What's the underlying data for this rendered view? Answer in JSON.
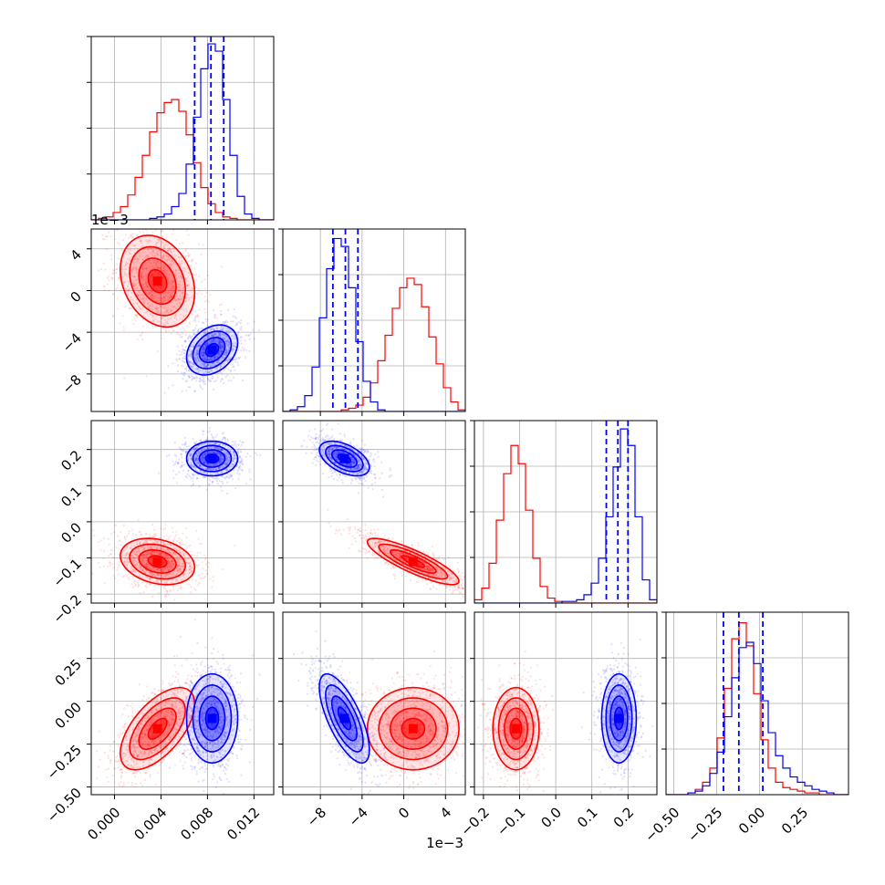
{
  "chart_data": {
    "type": "corner",
    "parameters": 4,
    "colors": {
      "red": "#ff0000",
      "blue": "#0000ff",
      "grid": "#b0b0b0",
      "frame": "#000000"
    },
    "axes": {
      "p0": {
        "range": [
          -0.002,
          0.0137
        ],
        "ticks": [
          0.0,
          0.004,
          0.008,
          0.012
        ],
        "tick_labels": [
          "0.000",
          "0.004",
          "0.008",
          "0.012"
        ]
      },
      "p1": {
        "range": [
          -0.0116,
          0.0059
        ],
        "ticks": [
          -0.008,
          -0.004,
          0.0,
          0.004
        ],
        "tick_labels": [
          "−8",
          "−4",
          "0",
          "4"
        ],
        "offset_label": "1e−3"
      },
      "p2": {
        "range": [
          -0.225,
          0.28
        ],
        "ticks": [
          -0.2,
          -0.1,
          0.0,
          0.1,
          0.2
        ],
        "tick_labels": [
          "−0.2",
          "−0.1",
          "0.0",
          "0.1",
          "0.2"
        ]
      },
      "p3": {
        "range": [
          -0.545,
          0.52
        ],
        "ticks": [
          -0.5,
          -0.25,
          0.0,
          0.25
        ],
        "tick_labels": [
          "−0.50",
          "−0.25",
          "0.00",
          "0.25"
        ]
      }
    },
    "y_tick_labels": {
      "p1": [
        "4",
        "0",
        "−4",
        "−8"
      ],
      "p2": [
        "0.2",
        "0.1",
        "0.0",
        "−0.1",
        "−0.2"
      ],
      "p3": [
        "0.25",
        "0.00",
        "−0.25",
        "−0.50"
      ]
    },
    "offset_labels": {
      "p1_left": "1e−3",
      "p1_bottom": "1e−3"
    },
    "series": [
      {
        "name": "",
        "color": "#ff0000",
        "mean": [
          0.0037,
          0.0009,
          -0.11,
          -0.16
        ],
        "std": [
          0.0016,
          0.0022,
          0.032,
          0.12
        ],
        "corr": {
          "0-1": -0.25,
          "0-2": -0.25,
          "0-3": 0.6,
          "1-2": -0.85,
          "1-3": 0.0,
          "2-3": 0.0
        }
      },
      {
        "name": "",
        "color": "#0000ff",
        "mean": [
          0.0084,
          -0.0057,
          0.175,
          -0.1
        ],
        "std": [
          0.0011,
          0.0012,
          0.024,
          0.13
        ],
        "corr": {
          "0-1": 0.3,
          "0-2": 0.0,
          "0-3": 0.0,
          "1-2": -0.5,
          "1-3": -0.7,
          "2-3": 0.0
        }
      }
    ],
    "quantile_lines": {
      "p0": [
        0.0069,
        0.0083,
        0.0094
      ],
      "p1": [
        -0.0068,
        -0.0056,
        -0.0044
      ],
      "p2": [
        0.14,
        0.172,
        0.2
      ],
      "p3": [
        -0.21,
        -0.12,
        0.02
      ]
    },
    "histograms": {
      "p0": {
        "bins": [
          -0.002,
          0.0137,
          25
        ],
        "red": [
          0,
          1,
          2,
          5,
          9,
          17,
          29,
          44,
          60,
          73,
          80,
          82,
          74,
          58,
          39,
          22,
          11,
          5,
          2,
          1,
          0,
          0,
          0,
          0,
          0
        ],
        "blue": [
          0,
          0,
          0,
          0,
          0,
          0,
          0,
          0,
          1,
          2,
          4,
          9,
          18,
          38,
          70,
          103,
          120,
          115,
          82,
          44,
          16,
          4,
          1,
          0,
          0
        ],
        "ymax": 125
      },
      "p1": {
        "bins": [
          -0.0116,
          0.0059,
          25
        ],
        "red": [
          0,
          0,
          0,
          0,
          0,
          0,
          0,
          0,
          1,
          2,
          4,
          9,
          18,
          32,
          48,
          65,
          78,
          84,
          80,
          66,
          47,
          30,
          15,
          6,
          1
        ],
        "blue": [
          0,
          1,
          3,
          10,
          28,
          59,
          90,
          109,
          104,
          78,
          44,
          19,
          6,
          1,
          0,
          0,
          0,
          0,
          0,
          0,
          0,
          0,
          0,
          0,
          0
        ],
        "ymax": 115
      },
      "p2": {
        "bins": [
          -0.225,
          0.28,
          25
        ],
        "red": [
          2,
          9,
          24,
          50,
          78,
          95,
          84,
          56,
          27,
          10,
          3,
          1,
          0,
          0,
          0,
          0,
          0,
          0,
          0,
          0,
          0,
          0,
          0,
          0,
          0
        ],
        "blue": [
          0,
          0,
          0,
          0,
          0,
          0,
          0,
          0,
          0,
          0,
          0,
          0,
          1,
          1,
          2,
          5,
          12,
          27,
          52,
          82,
          105,
          95,
          52,
          14,
          2
        ],
        "ymax": 110
      },
      "p3": {
        "bins": [
          -0.545,
          0.52,
          25
        ],
        "red": [
          0,
          0,
          0,
          1,
          3,
          7,
          15,
          32,
          60,
          88,
          97,
          84,
          57,
          31,
          15,
          7,
          4,
          3,
          2,
          1,
          1,
          0,
          0,
          0,
          0
        ],
        "blue": [
          0,
          0,
          0,
          1,
          2,
          5,
          12,
          24,
          44,
          66,
          83,
          86,
          74,
          53,
          35,
          22,
          15,
          10,
          7,
          5,
          3,
          2,
          1,
          0,
          0
        ],
        "ymax": 103
      }
    }
  }
}
